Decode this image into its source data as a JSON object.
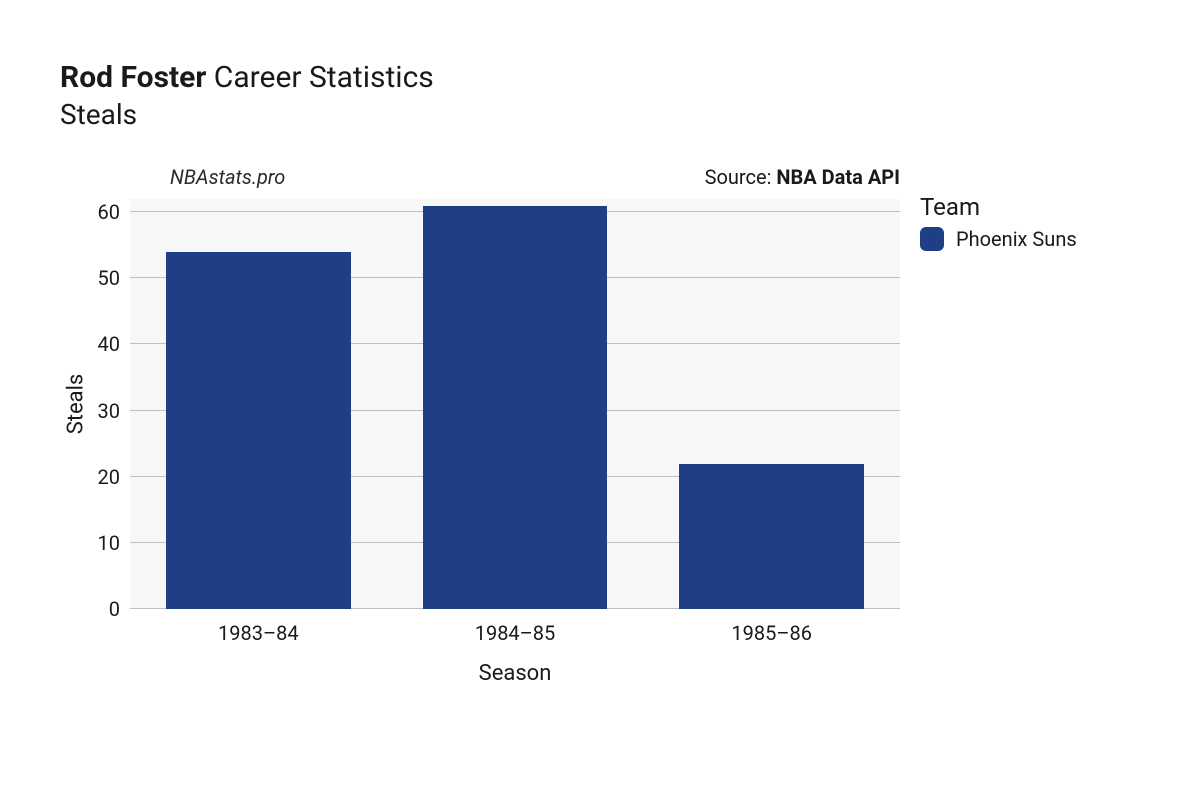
{
  "header": {
    "title_bold": "Rod Foster",
    "title_rest": "Career Statistics",
    "subtitle": "Steals"
  },
  "meta": {
    "watermark": "NBAstats.pro",
    "source_prefix": "Source: ",
    "source_name": "NBA Data API"
  },
  "chart": {
    "type": "bar",
    "x_title": "Season",
    "y_title": "Steals",
    "categories": [
      "1983–84",
      "1984–85",
      "1985–86"
    ],
    "values": [
      54,
      61,
      22
    ],
    "bar_colors": [
      "#1e3e85",
      "#1e3e85",
      "#1e3e85"
    ],
    "ylim": [
      0,
      62
    ],
    "yticks": [
      0,
      10,
      20,
      30,
      40,
      50,
      60
    ],
    "background_color": "#f7f7f7",
    "grid_color": "#bfbfbf",
    "bar_width": 0.72,
    "tick_fontsize": 20,
    "axis_title_fontsize": 22,
    "legend": {
      "title": "Team",
      "items": [
        {
          "label": "Phoenix Suns",
          "color": "#1e3e85"
        }
      ]
    }
  }
}
